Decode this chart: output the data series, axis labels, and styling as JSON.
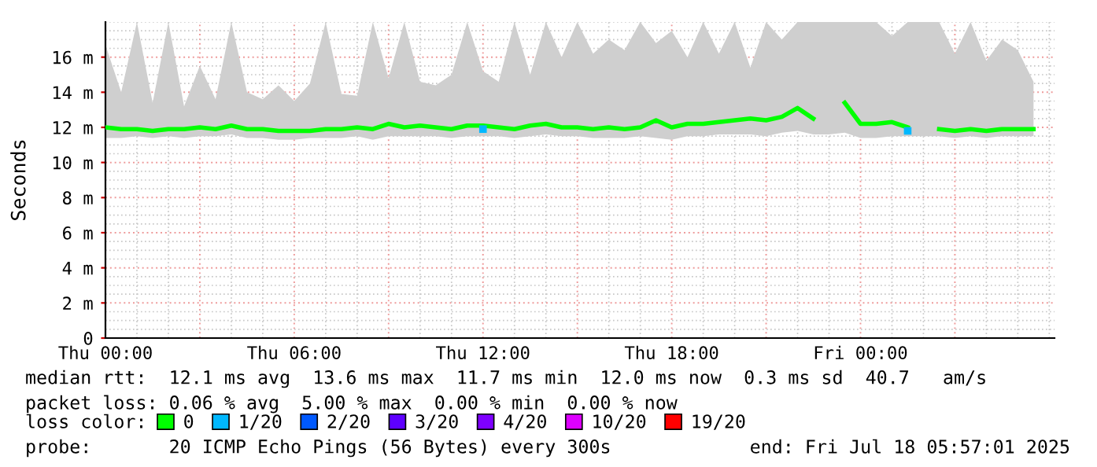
{
  "chart_data": {
    "type": "line",
    "ylabel": "Seconds",
    "x": [
      "2025-07-17T00:00",
      "2025-07-17T00:30",
      "2025-07-17T01:00",
      "2025-07-17T01:30",
      "2025-07-17T02:00",
      "2025-07-17T02:30",
      "2025-07-17T03:00",
      "2025-07-17T03:30",
      "2025-07-17T04:00",
      "2025-07-17T04:30",
      "2025-07-17T05:00",
      "2025-07-17T05:30",
      "2025-07-17T06:00",
      "2025-07-17T06:30",
      "2025-07-17T07:00",
      "2025-07-17T07:30",
      "2025-07-17T08:00",
      "2025-07-17T08:30",
      "2025-07-17T09:00",
      "2025-07-17T09:30",
      "2025-07-17T10:00",
      "2025-07-17T10:30",
      "2025-07-17T11:00",
      "2025-07-17T11:30",
      "2025-07-17T12:00",
      "2025-07-17T12:30",
      "2025-07-17T13:00",
      "2025-07-17T13:30",
      "2025-07-17T14:00",
      "2025-07-17T14:30",
      "2025-07-17T15:00",
      "2025-07-17T15:30",
      "2025-07-17T16:00",
      "2025-07-17T16:30",
      "2025-07-17T17:00",
      "2025-07-17T17:30",
      "2025-07-17T18:00",
      "2025-07-17T18:30",
      "2025-07-17T19:00",
      "2025-07-17T19:30",
      "2025-07-17T20:00",
      "2025-07-17T20:30",
      "2025-07-17T21:00",
      "2025-07-17T21:30",
      "2025-07-17T22:00",
      "2025-07-17T22:30",
      "2025-07-17T23:00",
      "2025-07-17T23:30",
      "2025-07-18T00:00",
      "2025-07-18T00:30",
      "2025-07-18T01:00",
      "2025-07-18T01:30",
      "2025-07-18T02:00",
      "2025-07-18T02:30",
      "2025-07-18T03:00",
      "2025-07-18T03:30",
      "2025-07-18T04:00",
      "2025-07-18T04:30",
      "2025-07-18T05:00",
      "2025-07-18T05:30"
    ],
    "series": [
      {
        "name": "0",
        "color": "#00ff00",
        "values": [
          12.0,
          11.9,
          11.9,
          11.8,
          11.9,
          11.9,
          12.0,
          11.9,
          12.1,
          11.9,
          11.9,
          11.8,
          11.8,
          11.8,
          11.9,
          11.9,
          12.0,
          11.9,
          12.2,
          12.0,
          12.1,
          12.0,
          11.9,
          12.1,
          12.1,
          12.0,
          11.9,
          12.1,
          12.2,
          12.0,
          12.0,
          11.9,
          12.0,
          11.9,
          12.0,
          12.4,
          12.0,
          12.2,
          12.2,
          12.3,
          12.4,
          12.5,
          12.4,
          12.6,
          13.1,
          12.5,
          null,
          13.4,
          12.2,
          12.2,
          12.3,
          12.0,
          null,
          11.9,
          11.8,
          11.9,
          11.8,
          11.9,
          11.9,
          11.9
        ],
        "lower": [
          11.4,
          11.4,
          11.5,
          11.4,
          11.5,
          11.4,
          11.5,
          11.5,
          11.6,
          11.4,
          11.4,
          11.3,
          11.3,
          11.4,
          11.4,
          11.4,
          11.5,
          11.3,
          11.5,
          11.5,
          11.5,
          11.5,
          11.4,
          11.5,
          11.5,
          11.5,
          11.4,
          11.5,
          11.6,
          11.5,
          11.5,
          11.4,
          11.4,
          11.4,
          11.5,
          11.4,
          11.3,
          11.5,
          11.5,
          11.6,
          11.6,
          11.6,
          11.5,
          11.7,
          11.8,
          11.6,
          11.6,
          11.7,
          11.4,
          11.4,
          11.5,
          11.5,
          11.5,
          11.5,
          11.4,
          11.5,
          11.4,
          11.5,
          11.5,
          11.5
        ],
        "upper": [
          16.7,
          14.0,
          18.0,
          13.4,
          18.0,
          13.2,
          15.5,
          13.6,
          18.0,
          14.0,
          13.6,
          14.4,
          13.5,
          14.5,
          18.0,
          13.9,
          13.8,
          18.0,
          14.8,
          18.0,
          14.6,
          14.4,
          15.0,
          18.0,
          15.2,
          14.6,
          18.0,
          15.0,
          18.0,
          16.0,
          18.0,
          16.2,
          17.0,
          16.4,
          18.0,
          16.8,
          17.5,
          16.0,
          18.0,
          16.2,
          18.0,
          15.4,
          18.0,
          17.0,
          18.0,
          18.0,
          18.0,
          18.0,
          18.0,
          18.0,
          17.2,
          18.0,
          18.0,
          18.0,
          16.2,
          18.0,
          15.8,
          17.0,
          16.4,
          14.6
        ]
      },
      {
        "name": "1/20",
        "color": "#00b8ff",
        "type": "scatter",
        "x": [
          "2025-07-17T12:00",
          "2025-07-18T01:30"
        ],
        "values": [
          11.9,
          11.8
        ]
      },
      {
        "name": "2/20",
        "color": "#0059ff",
        "type": "scatter",
        "values": [
          null,
          null,
          null,
          null,
          null,
          null,
          null,
          null,
          null,
          null,
          null,
          null,
          null,
          null,
          null,
          null,
          null,
          null,
          null,
          null,
          null,
          null,
          null,
          null,
          null,
          null,
          null,
          null,
          null,
          null,
          null,
          null,
          null,
          null,
          null,
          null,
          null,
          null,
          null,
          null,
          null,
          null,
          null,
          null,
          null,
          null,
          null,
          null,
          null,
          null,
          null,
          null,
          null,
          null,
          null,
          null,
          null,
          null,
          null,
          null
        ]
      },
      {
        "name": "3/20",
        "color": "#5e00ff",
        "type": "scatter",
        "values": [
          null,
          null,
          null,
          null,
          null,
          null,
          null,
          null,
          null,
          null,
          null,
          null,
          null,
          null,
          null,
          null,
          null,
          null,
          null,
          null,
          null,
          null,
          null,
          null,
          null,
          null,
          null,
          null,
          null,
          null,
          null,
          null,
          null,
          null,
          null,
          null,
          null,
          null,
          null,
          null,
          null,
          null,
          null,
          null,
          null,
          null,
          null,
          null,
          null,
          null,
          null,
          null,
          null,
          null,
          null,
          null,
          null,
          null,
          null,
          null
        ]
      },
      {
        "name": "4/20",
        "color": "#7e00ff",
        "type": "scatter",
        "values": [
          null,
          null,
          null,
          null,
          null,
          null,
          null,
          null,
          null,
          null,
          null,
          null,
          null,
          null,
          null,
          null,
          null,
          null,
          null,
          null,
          null,
          null,
          null,
          null,
          null,
          null,
          null,
          null,
          null,
          null,
          null,
          null,
          null,
          null,
          null,
          null,
          null,
          null,
          null,
          null,
          null,
          null,
          null,
          null,
          null,
          null,
          null,
          null,
          null,
          null,
          null,
          null,
          null,
          null,
          null,
          null,
          null,
          null,
          null,
          null
        ]
      },
      {
        "name": "10/20",
        "color": "#dd00ff",
        "type": "scatter",
        "values": [
          null,
          null,
          null,
          null,
          null,
          null,
          null,
          null,
          null,
          null,
          null,
          null,
          null,
          null,
          null,
          null,
          null,
          null,
          null,
          null,
          null,
          null,
          null,
          null,
          null,
          null,
          null,
          null,
          null,
          null,
          null,
          null,
          null,
          null,
          null,
          null,
          null,
          null,
          null,
          null,
          null,
          null,
          null,
          null,
          null,
          null,
          null,
          null,
          null,
          null,
          null,
          null,
          null,
          null,
          null,
          null,
          null,
          null,
          null,
          null
        ]
      },
      {
        "name": "19/20",
        "color": "#ff0000",
        "type": "scatter",
        "values": [
          null,
          null,
          null,
          null,
          null,
          null,
          null,
          null,
          null,
          null,
          null,
          null,
          null,
          null,
          null,
          null,
          null,
          null,
          null,
          null,
          null,
          null,
          null,
          null,
          null,
          null,
          null,
          null,
          null,
          null,
          null,
          null,
          null,
          null,
          null,
          null,
          null,
          null,
          null,
          null,
          null,
          null,
          null,
          null,
          null,
          null,
          null,
          null,
          null,
          null,
          null,
          null,
          null,
          null,
          null,
          null,
          null,
          null,
          null,
          null
        ]
      }
    ],
    "legend_title": "loss color:",
    "legend": "bottom",
    "xlim": [
      "2025-07-17T00:00",
      "2025-07-18T06:10"
    ],
    "xticks": [
      {
        "value": "2025-07-17T00:00",
        "label": "Thu 00:00"
      },
      {
        "value": "2025-07-17T03:00",
        "label": null
      },
      {
        "value": "2025-07-17T06:00",
        "label": "Thu 06:00"
      },
      {
        "value": "2025-07-17T09:00",
        "label": null
      },
      {
        "value": "2025-07-17T12:00",
        "label": "Thu 12:00"
      },
      {
        "value": "2025-07-17T15:00",
        "label": null
      },
      {
        "value": "2025-07-17T18:00",
        "label": "Thu 18:00"
      },
      {
        "value": "2025-07-17T21:00",
        "label": null
      },
      {
        "value": "2025-07-18T00:00",
        "label": "Fri 00:00"
      },
      {
        "value": "2025-07-18T03:00",
        "label": null
      }
    ],
    "ylim": [
      0,
      18
    ],
    "yticks": [
      {
        "value": 0,
        "label": "0"
      },
      {
        "value": 2,
        "label": "2 m"
      },
      {
        "value": 4,
        "label": "4 m"
      },
      {
        "value": 6,
        "label": "6 m"
      },
      {
        "value": 8,
        "label": "8 m"
      },
      {
        "value": 10,
        "label": "10 m"
      },
      {
        "value": 12,
        "label": "12 m"
      },
      {
        "value": 14,
        "label": "14 m"
      },
      {
        "value": 16,
        "label": "16 m"
      }
    ],
    "grid": true,
    "annotations": [
      "median rtt:  12.1 ms avg  13.6 ms max  11.7 ms min  12.0 ms now  0.3 ms sd  40.7   am/s",
      "packet loss: 0.06 % avg  5.00 % max  0.00 % min  0.00 % now",
      "probe:       20 ICMP Echo Pings (56 Bytes) every 300s",
      "end: Fri Jul 18 05:57:01 2025"
    ]
  }
}
